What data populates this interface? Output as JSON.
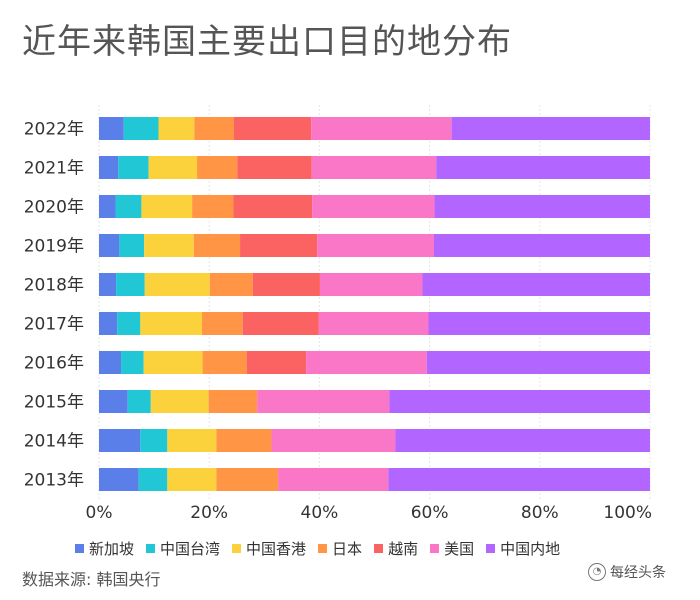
{
  "title": "近年来韩国主要出口目的地分布",
  "source": "数据来源: 韩国央行",
  "watermark": "每经头条",
  "chart_data": {
    "type": "bar",
    "orientation": "horizontal",
    "stacked": "percent",
    "categories": [
      "2022年",
      "2021年",
      "2020年",
      "2019年",
      "2018年",
      "2017年",
      "2016年",
      "2015年",
      "2014年",
      "2013年"
    ],
    "x_ticks": [
      "0%",
      "20%",
      "40%",
      "60%",
      "80%",
      "100%"
    ],
    "xlim": [
      0,
      100
    ],
    "legend_position": "bottom",
    "series": [
      {
        "name": "新加坡",
        "color": "#5B7FE8",
        "values": [
          4.5,
          3.5,
          3.0,
          3.7,
          3.1,
          3.3,
          4.0,
          5.2,
          7.5,
          7.2
        ]
      },
      {
        "name": "中国台湾",
        "color": "#22C7D6",
        "values": [
          6.3,
          5.5,
          4.7,
          4.5,
          5.2,
          4.2,
          4.1,
          4.2,
          4.9,
          5.2
        ]
      },
      {
        "name": "中国香港",
        "color": "#FCD23C",
        "values": [
          6.5,
          8.8,
          9.2,
          9.0,
          11.8,
          11.2,
          10.7,
          10.5,
          8.9,
          8.9
        ]
      },
      {
        "name": "日本",
        "color": "#FF9545",
        "values": [
          7.2,
          7.3,
          7.5,
          8.4,
          7.8,
          7.4,
          8.0,
          8.8,
          10.0,
          11.2
        ]
      },
      {
        "name": "越南",
        "color": "#FB6363",
        "values": [
          14.0,
          13.5,
          14.3,
          14.0,
          12.2,
          13.8,
          10.8,
          0,
          0,
          0
        ]
      },
      {
        "name": "美国",
        "color": "#FA77C8",
        "values": [
          25.5,
          22.6,
          22.2,
          21.2,
          18.6,
          19.9,
          21.9,
          24.0,
          22.5,
          20.0
        ]
      },
      {
        "name": "中国内地",
        "color": "#B266FF",
        "values": [
          36.0,
          38.8,
          39.1,
          39.2,
          41.3,
          40.2,
          40.5,
          47.3,
          46.2,
          47.5
        ]
      }
    ]
  }
}
